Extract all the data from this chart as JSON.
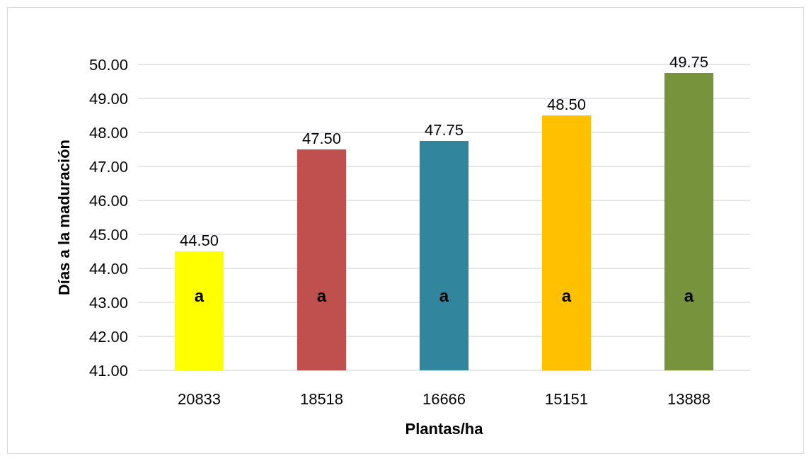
{
  "chart_data": {
    "type": "bar",
    "xlabel": "Plantas/ha",
    "ylabel": "Días a la maduración",
    "categories": [
      "20833",
      "18518",
      "16666",
      "15151",
      "13888"
    ],
    "values": [
      44.5,
      47.5,
      47.75,
      48.5,
      49.75
    ],
    "colors": [
      "#ffff00",
      "#c0504d",
      "#31859c",
      "#ffc000",
      "#77933c"
    ],
    "value_labels": [
      "44.50",
      "47.50",
      "47.75",
      "48.50",
      "49.75"
    ],
    "ylim": [
      41,
      50
    ],
    "yticks": [
      {
        "value": 41,
        "label": "41.00"
      },
      {
        "value": 42,
        "label": "42.00"
      },
      {
        "value": 43,
        "label": "43.00"
      },
      {
        "value": 44,
        "label": "44.00"
      },
      {
        "value": 45,
        "label": "45.00"
      },
      {
        "value": 46,
        "label": "46.00"
      },
      {
        "value": 47,
        "label": "47.00"
      },
      {
        "value": 48,
        "label": "48.00"
      },
      {
        "value": 49,
        "label": "49.00"
      },
      {
        "value": 50,
        "label": "50.00"
      }
    ],
    "grid": "y",
    "annotations": [
      "a",
      "a",
      "a",
      "a",
      "a"
    ]
  }
}
